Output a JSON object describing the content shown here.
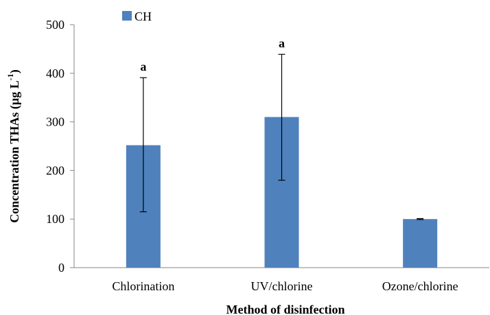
{
  "chart_data": {
    "type": "bar",
    "categories": [
      "Chlorination",
      "UV/chlorine",
      "Ozone/chlorine"
    ],
    "series": [
      {
        "name": "CH",
        "values": [
          252,
          310,
          100
        ],
        "error_low": [
          115,
          180,
          99
        ],
        "error_high": [
          391,
          439,
          101
        ],
        "color": "#4f81bd"
      }
    ],
    "annotations": [
      "a",
      "a",
      ""
    ],
    "xlabel": "Method of disinfection",
    "ylabel": {
      "main": "Concentration THAs (µg L",
      "superscript": "-1",
      "suffix": ")"
    },
    "ylim": [
      0,
      500
    ],
    "yticks": [
      0,
      100,
      200,
      300,
      400,
      500
    ],
    "grid": false,
    "legend_position": "top-left"
  }
}
